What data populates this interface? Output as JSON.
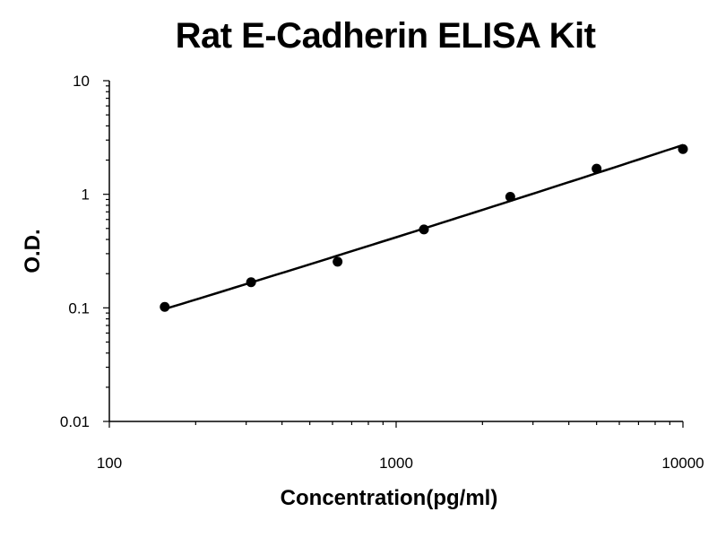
{
  "chart_data": {
    "type": "scatter",
    "title": "Rat E-Cadherin ELISA Kit",
    "xlabel": "Concentration(pg/ml)",
    "ylabel": "O.D.",
    "xscale": "log",
    "yscale": "log",
    "xlim": [
      100,
      10000
    ],
    "ylim": [
      0.01,
      10
    ],
    "x_ticks": [
      "100",
      "1000",
      "10000"
    ],
    "y_ticks": [
      "0.01",
      "0.1",
      "1",
      "10"
    ],
    "grid": false,
    "legend": "none",
    "series": [
      {
        "x": [
          156,
          312,
          625,
          1250,
          2500,
          5000,
          10000
        ],
        "y": [
          0.102,
          0.168,
          0.255,
          0.49,
          0.95,
          1.68,
          2.5
        ],
        "fit_curve": true
      }
    ]
  }
}
